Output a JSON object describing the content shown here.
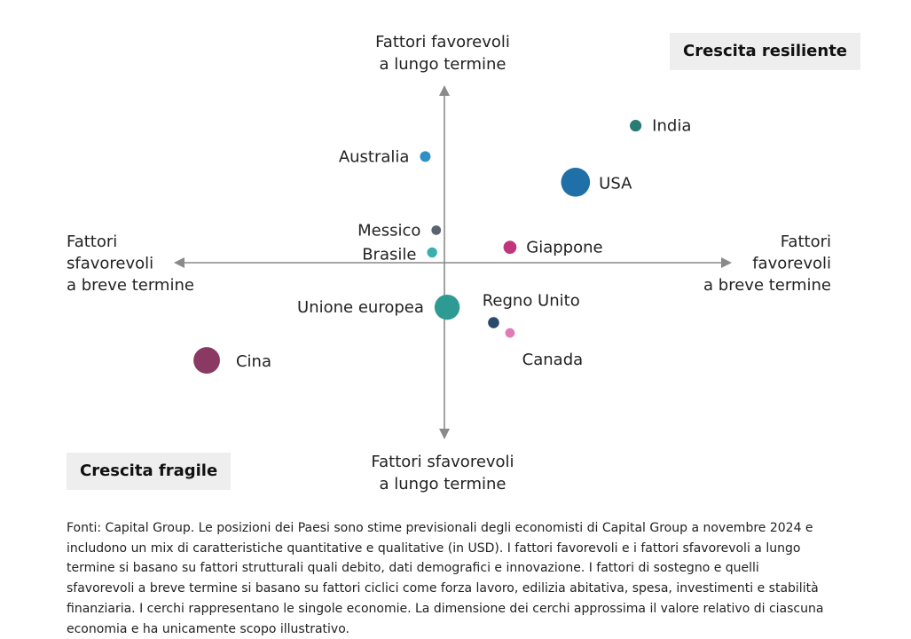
{
  "chart_data": {
    "type": "scatter",
    "title_fragment": "",
    "axes": {
      "y_top_label": [
        "Fattori favorevoli",
        "a lungo termine"
      ],
      "y_bottom_label": [
        "Fattori sfavorevoli",
        "a lungo termine"
      ],
      "x_left_label": [
        "Fattori",
        "sfavorevoli",
        "a breve termine"
      ],
      "x_right_label": [
        "Fattori",
        "favorevoli",
        "a breve termine"
      ],
      "xlim": [
        -10,
        10
      ],
      "ylim": [
        -10,
        10
      ]
    },
    "quadrant_labels": {
      "top_right": "Crescita resiliente",
      "bottom_left": "Crescita fragile"
    },
    "points": [
      {
        "name": "India",
        "x": 7.0,
        "y": 8.0,
        "size": 1.2,
        "color": "#2a7b74"
      },
      {
        "name": "USA",
        "x": 4.8,
        "y": 4.7,
        "size": 7.4,
        "color": "#1f6fa8"
      },
      {
        "name": "Australia",
        "x": -0.7,
        "y": 6.2,
        "size": 1.0,
        "color": "#2f8fc6"
      },
      {
        "name": "Messico",
        "x": -0.3,
        "y": 1.9,
        "size": 0.8,
        "color": "#5a6470"
      },
      {
        "name": "Brasile",
        "x": -0.45,
        "y": 0.6,
        "size": 0.9,
        "color": "#3ab0ae"
      },
      {
        "name": "Giappone",
        "x": 2.4,
        "y": 0.9,
        "size": 1.5,
        "color": "#c0357c"
      },
      {
        "name": "Unione europea",
        "x": 0.1,
        "y": -2.6,
        "size": 5.6,
        "color": "#2e9a94"
      },
      {
        "name": "Regno Unito",
        "x": 1.8,
        "y": -3.5,
        "size": 1.1,
        "color": "#2c4a6e"
      },
      {
        "name": "Canada",
        "x": 2.4,
        "y": -4.1,
        "size": 0.8,
        "color": "#e07bb5"
      },
      {
        "name": "Cina",
        "x": -8.7,
        "y": -5.7,
        "size": 6.2,
        "color": "#8a3a62"
      }
    ]
  },
  "footnote": "Fonti: Capital Group. Le posizioni dei Paesi sono stime previsionali degli economisti di Capital Group a novembre 2024 e includono un mix di caratteristiche quantitative e qualitative (in USD). I fattori favorevoli e i fattori sfavorevoli a lungo termine si basano su fattori strutturali quali debito, dati demografici e innovazione. I fattori di sostegno e quelli sfavorevoli a breve termine si basano su fattori ciclici come forza lavoro, edilizia abitativa, spesa, investimenti e stabilità finanziaria. I cerchi rappresentano le singole economie. La dimensione dei cerchi approssima il valore relativo di ciascuna economia e ha unicamente scopo illustrativo."
}
